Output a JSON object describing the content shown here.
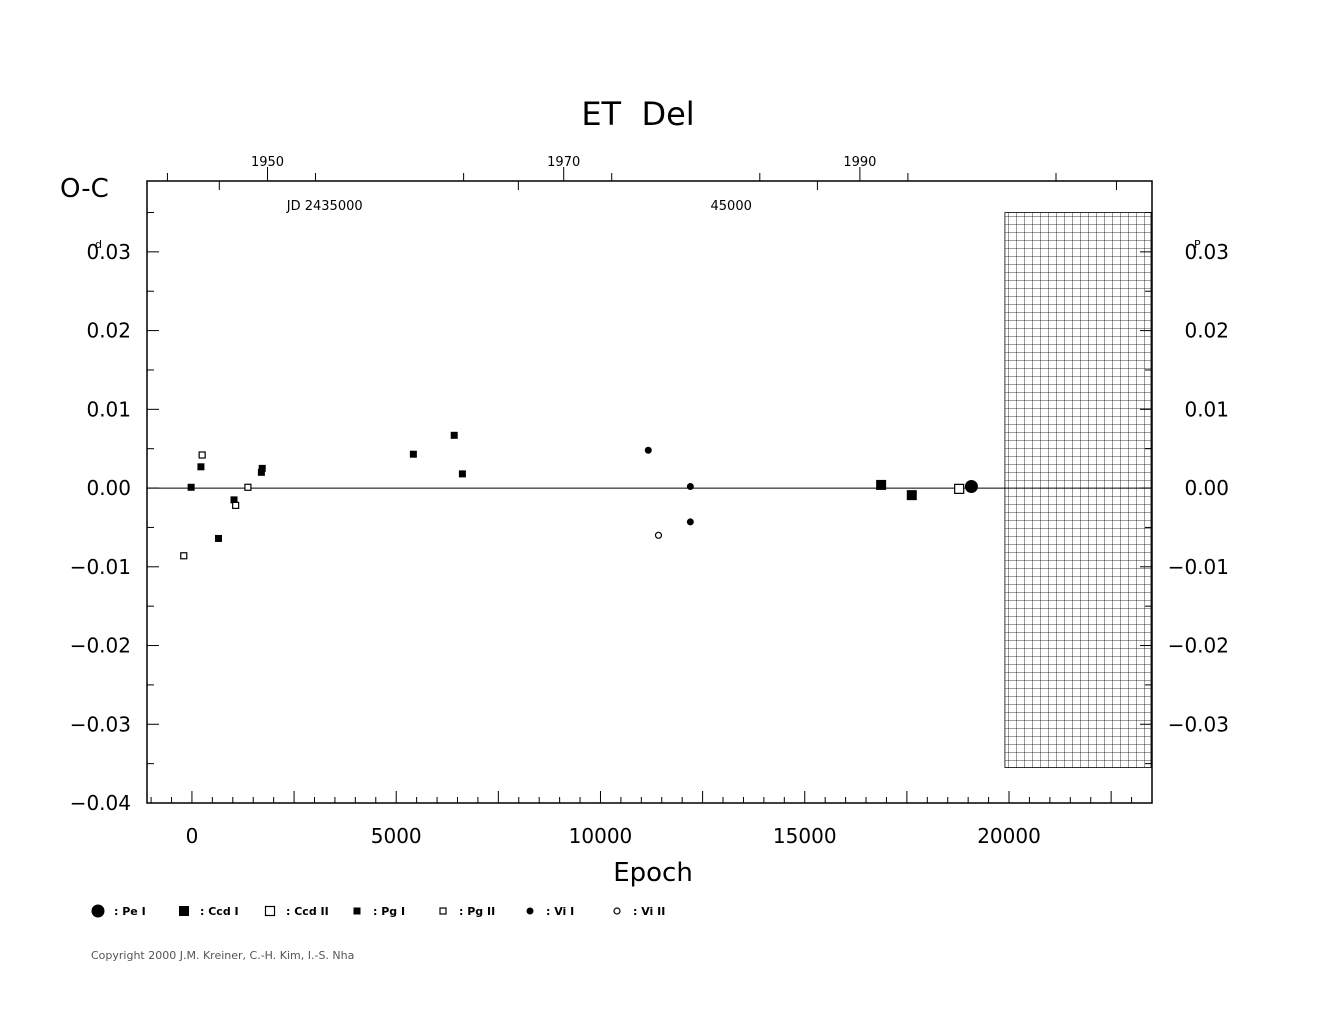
{
  "chart_data": {
    "type": "scatter",
    "title": "ET  Del",
    "ylabel": "O-C",
    "ylabel_unit_left": "d",
    "ylabel_unit_right": "P",
    "xlabel": "Epoch",
    "xlim": [
      -1100,
      23500
    ],
    "ylim": [
      -0.04,
      0.039
    ],
    "x_ticks": [
      0,
      5000,
      10000,
      15000,
      20000
    ],
    "x_tick_labels": [
      "0",
      "5000",
      "10000",
      "15000",
      "20000"
    ],
    "y_ticks": [
      -0.04,
      -0.03,
      -0.02,
      -0.01,
      0.0,
      0.01,
      0.02,
      0.03
    ],
    "y_tick_labels": [
      "−0.04",
      "−0.03",
      "−0.02",
      "−0.01",
      "0.00",
      "0.01",
      "0.02",
      "0.03"
    ],
    "right_y_ticks": [
      -0.03,
      -0.02,
      -0.01,
      0.0,
      0.01,
      0.02,
      0.03
    ],
    "right_y_tick_labels": [
      "−0.03",
      "−0.02",
      "−0.01",
      "0.00",
      "0.01",
      "0.02",
      "0.03"
    ],
    "top_year_ticks": [
      {
        "epoch": 1850,
        "label": "1950"
      },
      {
        "epoch": 9100,
        "label": "1970"
      },
      {
        "epoch": 16350,
        "label": "1990"
      }
    ],
    "jd_labels": [
      {
        "epoch": 3250,
        "label": "JD  2435000"
      },
      {
        "epoch": 13200,
        "label": "45000"
      }
    ],
    "hatched_region": {
      "x_from": 19900,
      "x_to": 23500,
      "y_from": -0.0355,
      "y_to": 0.035
    },
    "series": [
      {
        "name": "Pe I",
        "marker": "big-filled-circle",
        "points": [
          [
            19080,
            0.0002
          ]
        ]
      },
      {
        "name": "Ccd I",
        "marker": "filled-square",
        "points": [
          [
            16870,
            0.0004
          ],
          [
            17620,
            -0.0009
          ]
        ]
      },
      {
        "name": "Ccd II",
        "marker": "open-square",
        "points": [
          [
            18780,
            -0.0001
          ]
        ]
      },
      {
        "name": "Pg I",
        "marker": "small-filled-square",
        "points": [
          [
            -20,
            0.0001
          ],
          [
            220,
            0.0027
          ],
          [
            650,
            -0.0064
          ],
          [
            1030,
            -0.0015
          ],
          [
            1700,
            0.002
          ],
          [
            1720,
            0.0025
          ],
          [
            5420,
            0.0043
          ],
          [
            6420,
            0.0067
          ],
          [
            6620,
            0.0018
          ]
        ]
      },
      {
        "name": "Pg II",
        "marker": "small-open-square",
        "points": [
          [
            -200,
            -0.0086
          ],
          [
            250,
            0.0042
          ],
          [
            1070,
            -0.0022
          ],
          [
            1370,
            0.0001
          ]
        ]
      },
      {
        "name": "Vi I",
        "marker": "small-filled-circle",
        "points": [
          [
            11170,
            0.0048
          ],
          [
            12200,
            0.0002
          ],
          [
            12200,
            -0.0043
          ]
        ]
      },
      {
        "name": "Vi II",
        "marker": "small-open-circle",
        "points": [
          [
            11420,
            -0.006
          ]
        ]
      }
    ],
    "legend": [
      {
        "marker": "big-filled-circle",
        "label": ": Pe  I"
      },
      {
        "marker": "filled-square",
        "label": ": Ccd  I"
      },
      {
        "marker": "open-square",
        "label": ": Ccd  II"
      },
      {
        "marker": "small-filled-square",
        "label": ": Pg  I"
      },
      {
        "marker": "small-open-square",
        "label": ": Pg  II"
      },
      {
        "marker": "small-filled-circle",
        "label": ": Vi  I"
      },
      {
        "marker": "small-open-circle",
        "label": ": Vi  II"
      }
    ],
    "grid": false,
    "legend_placement": "bottom"
  },
  "copyright": "Copyright 2000 J.M. Kreiner, C.-H. Kim, I.-S. Nha"
}
